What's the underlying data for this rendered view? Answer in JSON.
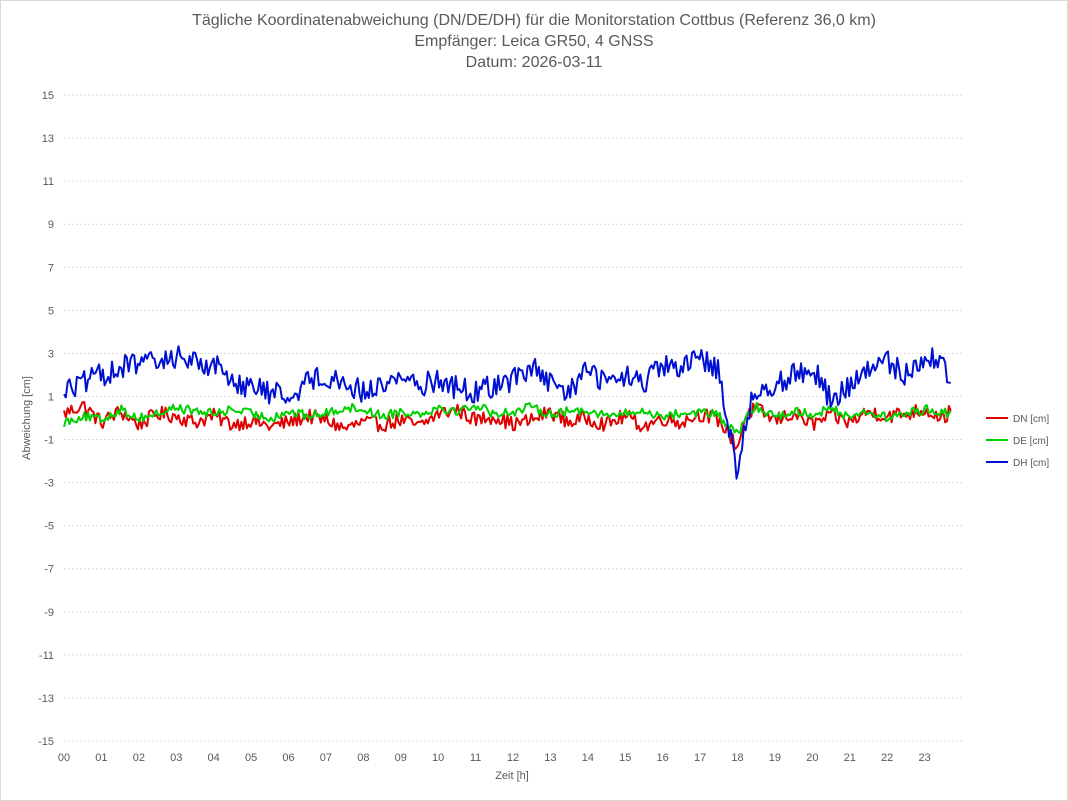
{
  "chart_data": {
    "type": "line",
    "title": "Tägliche Koordinatenabweichung (DN/DE/DH) für die Monitorstation Cottbus (Referenz 36,0 km)",
    "subtitle": "Empfänger: Leica GR50, 4 GNSS",
    "subtitle2": "Datum: 2026-03-11",
    "xlabel": "Zeit [h]",
    "ylabel": "Abweichung [cm]",
    "xlim": [
      0,
      24
    ],
    "ylim": [
      -15,
      15
    ],
    "grid": true,
    "legend_position": "right",
    "x_ticks": [
      "00",
      "01",
      "02",
      "03",
      "04",
      "05",
      "06",
      "07",
      "08",
      "09",
      "10",
      "11",
      "12",
      "13",
      "14",
      "15",
      "16",
      "17",
      "18",
      "19",
      "20",
      "21",
      "22",
      "23"
    ],
    "y_ticks": [
      15,
      13,
      11,
      9,
      7,
      5,
      3,
      1,
      -1,
      -3,
      -5,
      -7,
      -9,
      -11,
      -13,
      -15
    ],
    "x": [
      0.0,
      0.5,
      1.0,
      1.5,
      2.0,
      2.5,
      3.0,
      3.5,
      4.0,
      4.5,
      5.0,
      5.5,
      6.0,
      6.5,
      7.0,
      7.5,
      8.0,
      8.5,
      9.0,
      9.5,
      10.0,
      10.5,
      11.0,
      11.5,
      12.0,
      12.5,
      13.0,
      13.5,
      14.0,
      14.5,
      15.0,
      15.5,
      16.0,
      16.5,
      17.0,
      17.5,
      17.8,
      18.0,
      18.2,
      18.3,
      18.5,
      19.0,
      19.5,
      20.0,
      20.5,
      21.0,
      21.5,
      22.0,
      22.5,
      23.0,
      23.5,
      23.7
    ],
    "series": [
      {
        "name": "DN [cm]",
        "color": "#e00000",
        "values": [
          0.2,
          0.6,
          -0.2,
          0.3,
          -0.3,
          0.2,
          0.1,
          -0.2,
          0.1,
          -0.3,
          -0.1,
          -0.4,
          -0.2,
          0.1,
          -0.1,
          -0.5,
          -0.2,
          -0.3,
          -0.1,
          -0.4,
          0.2,
          0.4,
          -0.1,
          0.1,
          -0.3,
          -0.1,
          0.3,
          -0.2,
          0.0,
          -0.3,
          0.1,
          -0.4,
          0.0,
          -0.2,
          0.2,
          -0.1,
          -0.8,
          -1.4,
          0.0,
          0.3,
          0.4,
          -0.1,
          0.2,
          -0.3,
          0.1,
          -0.2,
          0.3,
          0.1,
          0.2,
          0.4,
          0.0,
          0.3
        ]
      },
      {
        "name": "DE [cm]",
        "color": "#00d000",
        "values": [
          -0.2,
          0.1,
          -0.1,
          0.4,
          0.0,
          0.2,
          0.5,
          0.3,
          0.2,
          0.4,
          0.2,
          0.0,
          0.3,
          0.1,
          0.2,
          0.5,
          0.4,
          0.1,
          0.3,
          0.2,
          0.5,
          0.3,
          0.6,
          0.2,
          0.3,
          0.5,
          0.2,
          0.3,
          0.4,
          0.1,
          0.2,
          0.3,
          0.1,
          0.2,
          0.3,
          0.1,
          -0.5,
          -0.7,
          -0.2,
          0.2,
          0.5,
          0.1,
          0.3,
          0.2,
          0.4,
          0.1,
          0.3,
          0.0,
          0.2,
          0.4,
          0.3,
          0.1
        ]
      },
      {
        "name": "DH [cm]",
        "color": "#0010d0",
        "values": [
          1.3,
          1.6,
          2.0,
          2.3,
          2.6,
          2.5,
          2.9,
          2.6,
          2.5,
          1.8,
          1.4,
          1.2,
          1.0,
          1.7,
          2.0,
          1.6,
          1.2,
          1.5,
          2.0,
          1.5,
          1.8,
          1.4,
          1.2,
          1.5,
          1.8,
          2.4,
          1.5,
          1.2,
          2.3,
          1.6,
          1.9,
          1.6,
          2.4,
          2.2,
          2.8,
          2.3,
          -0.7,
          -2.7,
          -0.5,
          0.4,
          1.2,
          1.6,
          2.0,
          2.4,
          0.8,
          1.5,
          2.2,
          2.6,
          2.0,
          2.9,
          2.5,
          1.7
        ]
      }
    ]
  }
}
